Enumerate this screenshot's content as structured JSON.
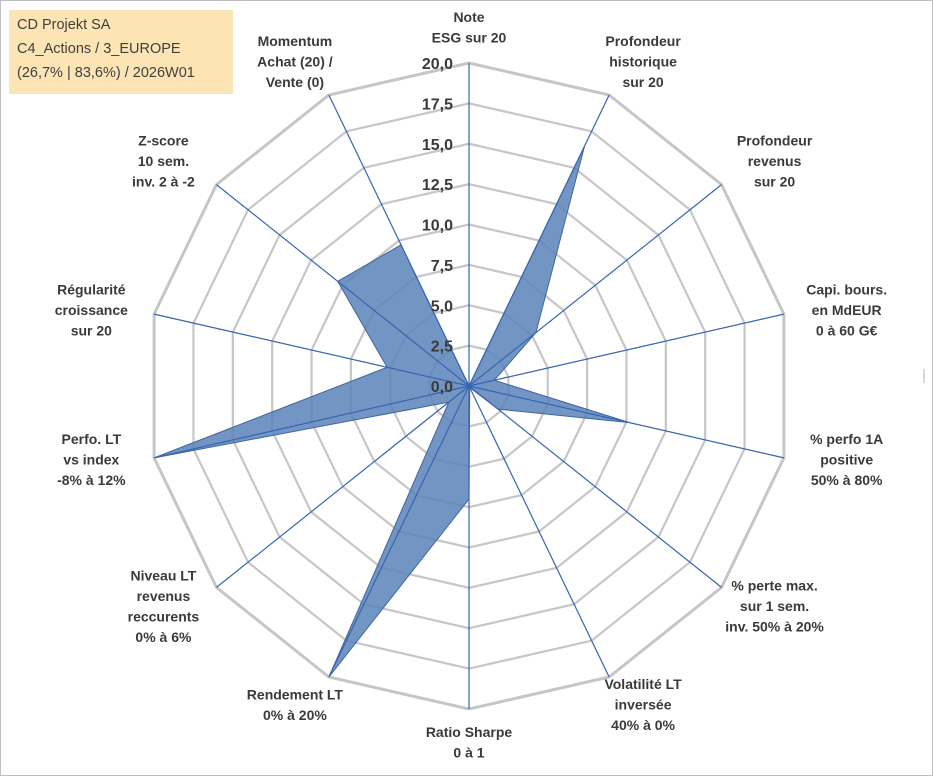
{
  "title_box": {
    "line1": "CD Projekt SA",
    "line2": "C4_Actions / 3_EUROPE",
    "line3": "(26,7% | 83,6%) / 2026W01",
    "background": "#fce4b4"
  },
  "chart_data": {
    "type": "radar",
    "title": "",
    "r_min": 0,
    "r_max": 20,
    "r_step": 2.5,
    "tick_labels": [
      "0,0",
      "2,5",
      "5,0",
      "7,5",
      "10,0",
      "12,5",
      "15,0",
      "17,5",
      "20,0"
    ],
    "axes": [
      {
        "label": [
          "Note",
          "ESG sur 20"
        ],
        "value": 0
      },
      {
        "label": [
          "Profondeur",
          "historique",
          "sur 20"
        ],
        "value": 16.5
      },
      {
        "label": [
          "Profondeur",
          "revenus",
          "sur 20"
        ],
        "value": 5.3
      },
      {
        "label": [
          "Capi. bours.",
          "en MdEUR",
          "0 à 60 G€"
        ],
        "value": 1.6
      },
      {
        "label": [
          "% perfo 1A",
          "positive",
          "50% à 80%"
        ],
        "value": 10.2
      },
      {
        "label": [
          "% perte max.",
          "sur 1 sem.",
          "inv. 50% à 20%"
        ],
        "value": 2.3
      },
      {
        "label": [
          "Volatilité LT",
          "inversée",
          "40% à 0%"
        ],
        "value": 0.1
      },
      {
        "label": [
          "Ratio Sharpe",
          "0 à 1"
        ],
        "value": 7.0
      },
      {
        "label": [
          "Rendement LT",
          "0% à 20%"
        ],
        "value": 20.0
      },
      {
        "label": [
          "Niveau LT",
          "revenus",
          "reccurents",
          "0% à 6%"
        ],
        "value": 1.6
      },
      {
        "label": [
          "Perfo. LT",
          "vs index",
          "-8% à 12%"
        ],
        "value": 20.0
      },
      {
        "label": [
          "Régularité",
          "croissance",
          "sur 20"
        ],
        "value": 5.2
      },
      {
        "label": [
          "Z-score",
          "10 sem.",
          "inv. 2 à -2"
        ],
        "value": 10.4
      },
      {
        "label": [
          "Momentum",
          "Achat (20) /",
          "Vente (0)"
        ],
        "value": 9.7
      }
    ],
    "colors": {
      "fill": "#5b82b8",
      "fill_opacity": 0.85,
      "stroke": "#3f66a0",
      "grid": "#c6c6c6",
      "spoke": "#3565b3",
      "text": "#3a3a3a"
    }
  }
}
